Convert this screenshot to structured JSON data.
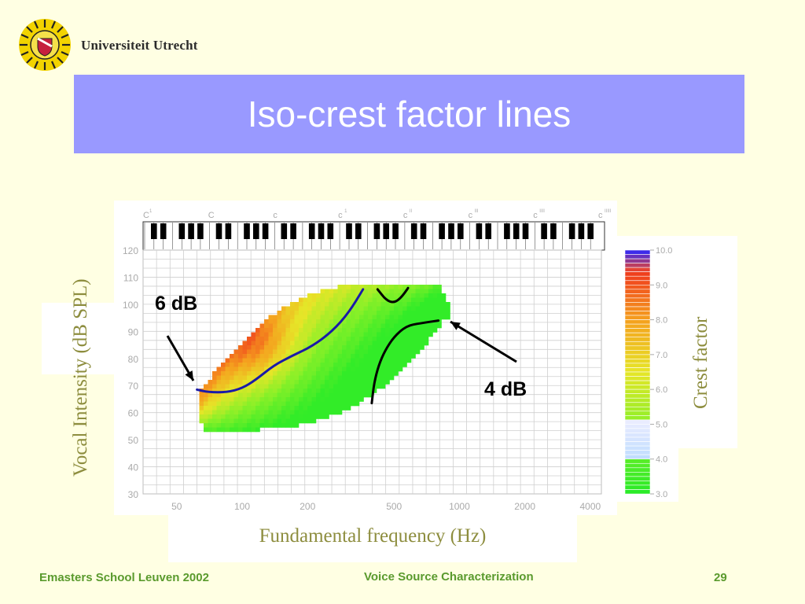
{
  "header": {
    "logo_text": "Universiteit Utrecht"
  },
  "slide": {
    "title": "Iso-crest factor lines"
  },
  "chart": {
    "ylabel": "Vocal Intensity (dB SPL)",
    "xlabel": "Fundamental frequency (Hz)",
    "colorbar_label": "Crest factor",
    "note_labels": [
      "C",
      "C",
      "c",
      "c",
      "c",
      "c",
      "c",
      "c"
    ],
    "note_marks": [
      "1",
      "",
      "",
      "1",
      "II",
      "III",
      "IIII",
      "IIIII"
    ],
    "annotations": {
      "six_db": "6 dB",
      "four_db": "4 dB"
    }
  },
  "chart_data": {
    "type": "heatmap",
    "title": "Iso-crest factor lines",
    "xlabel": "Fundamental frequency (Hz)",
    "ylabel": "Vocal Intensity (dB SPL)",
    "x_scale": "log",
    "x_ticks": [
      "50",
      "100",
      "200",
      "500",
      "1000",
      "2000",
      "4000"
    ],
    "x_tick_values": [
      50,
      100,
      200,
      500,
      1000,
      2000,
      4000
    ],
    "y_ticks": [
      "30",
      "40",
      "50",
      "60",
      "70",
      "80",
      "90",
      "100",
      "110",
      "120"
    ],
    "y_tick_values": [
      30,
      40,
      50,
      60,
      70,
      80,
      90,
      100,
      110,
      120
    ],
    "xlim": [
      35,
      4500
    ],
    "ylim": [
      30,
      120
    ],
    "colorbar": {
      "label": "Crest factor",
      "ticks": [
        "3.0",
        "4.0",
        "5.0",
        "6.0",
        "7.0",
        "8.0",
        "9.0",
        "10.0"
      ],
      "tick_values": [
        3,
        4,
        5,
        6,
        7,
        8,
        9,
        10
      ],
      "range": [
        3,
        10
      ]
    },
    "series": [
      {
        "name": "6 dB",
        "x": [
          62,
          70,
          85,
          100,
          115,
          140,
          170,
          210,
          260,
          310,
          360
        ],
        "y": [
          68.5,
          67.5,
          67.5,
          69,
          72,
          77.5,
          81,
          84.5,
          90,
          97,
          105.5
        ]
      },
      {
        "name": "4 dB",
        "x": [
          395,
          405,
          425,
          455,
          500,
          570,
          660,
          800
        ],
        "y": [
          63.5,
          71,
          77.5,
          83,
          88,
          92,
          93,
          94
        ]
      },
      {
        "x": [
          420,
          460,
          500,
          540,
          580
        ],
        "y": [
          105.5,
          101.5,
          100.5,
          102.5,
          106
        ]
      }
    ],
    "grid": true
  },
  "footer": {
    "left": "Emasters School Leuven 2002",
    "center": "Voice Source Characterization",
    "page": "29"
  },
  "colors": {
    "background": "#ffffe3",
    "title_bar": "#9999ff",
    "footer_text": "#5a9a2d",
    "axis_label": "#8d8d3e",
    "iso_line_6db": "#1a1aa8",
    "iso_line_4db": "#000000"
  }
}
